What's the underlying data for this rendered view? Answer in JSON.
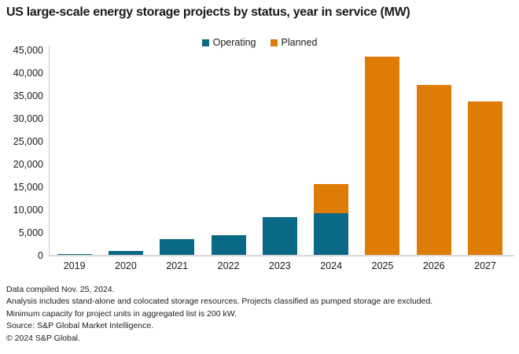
{
  "title": "US large-scale energy storage projects by status, year in service (MW)",
  "chart_data": {
    "type": "bar",
    "stacked": true,
    "title": "US large-scale energy storage projects by status, year in service (MW)",
    "categories": [
      "2019",
      "2020",
      "2021",
      "2022",
      "2023",
      "2024",
      "2025",
      "2026",
      "2027"
    ],
    "series": [
      {
        "name": "Operating",
        "color": "#0A6A85",
        "values": [
          250,
          900,
          3400,
          4300,
          8300,
          9100,
          0,
          0,
          0
        ]
      },
      {
        "name": "Planned",
        "color": "#DE7C05",
        "values": [
          0,
          0,
          0,
          0,
          0,
          6500,
          43600,
          37300,
          33700
        ]
      }
    ],
    "xlabel": "",
    "ylabel": "",
    "unit": "MW",
    "ylim": [
      0,
      45000
    ],
    "ytick_step": 5000,
    "ytick_labels": [
      "0",
      "5,000",
      "10,000",
      "15,000",
      "20,000",
      "25,000",
      "30,000",
      "35,000",
      "40,000",
      "45,000"
    ],
    "legend_position": "top-center",
    "grid": false
  },
  "colors": {
    "operating": "#0A6A85",
    "planned": "#DE7C05",
    "axis_line": "#c9c9c9",
    "baseline": "#d9d9d9",
    "text": "#1a1a1a"
  },
  "footer": {
    "lines": [
      "Data compiled Nov. 25, 2024.",
      "Analysis includes stand-alone and colocated storage resources. Projects classified as pumped storage are excluded.",
      "Minimum capacity for project units in aggregated list is 200 kW.",
      "Source: S&P Global Market Intelligence.",
      "© 2024 S&P Global."
    ]
  }
}
